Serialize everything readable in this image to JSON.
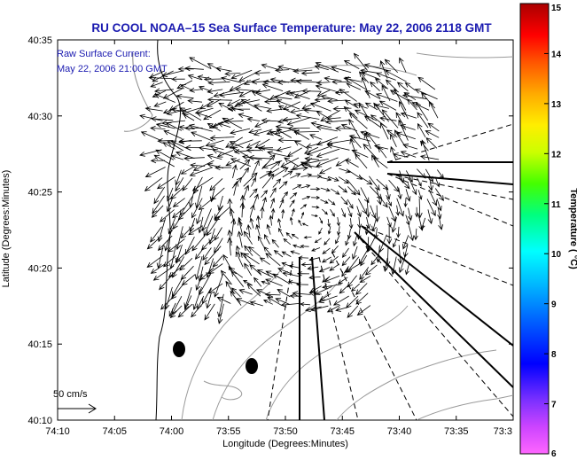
{
  "chart_data": {
    "type": "map",
    "title": "RU COOL  NOAA–15  Sea Surface Temperature:  May 22, 2006 2118 GMT",
    "annotation_line1": "Raw Surface Current:",
    "annotation_line2": "May 22, 2006 21:00 GMT",
    "xlabel": "Longitude (Degrees:Minutes)",
    "ylabel": "Latitude (Degrees:Minutes)",
    "x_ticks": [
      "74:10",
      "74:05",
      "74:00",
      "73:55",
      "73:50",
      "73:45",
      "73:40",
      "73:35",
      "73:3"
    ],
    "y_ticks": [
      "40:35",
      "40:30",
      "40:25",
      "40:20",
      "40:15",
      "40:10"
    ],
    "xlim": [
      "74:10",
      "73:30"
    ],
    "ylim": [
      "40:10",
      "40:35"
    ],
    "colorbar": {
      "label": "Temperature ( °C)",
      "ticks": [
        "15",
        "14",
        "13",
        "12",
        "11",
        "10",
        "9",
        "8",
        "7",
        "6"
      ],
      "range": [
        6,
        15
      ]
    },
    "scale_label": "50 cm/s",
    "vector_color": "#000000",
    "land_color": "#ffffff",
    "contour_color": "#999999"
  }
}
